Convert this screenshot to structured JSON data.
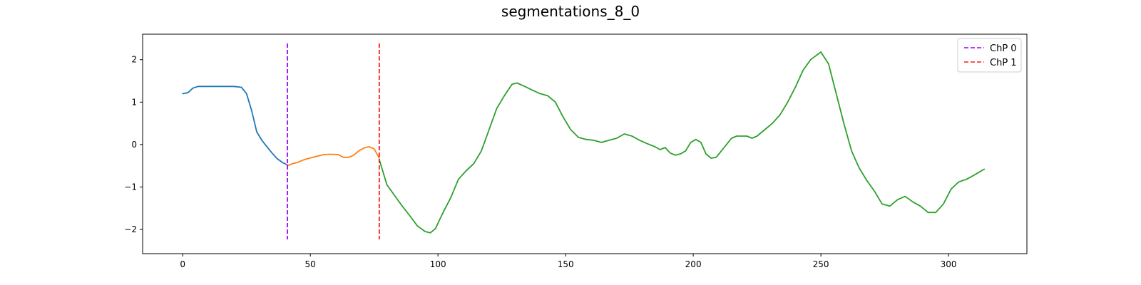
{
  "chart_data": {
    "type": "line",
    "title": "segmentations_8_0",
    "xlabel": "",
    "ylabel": "",
    "xlim": [
      -15.7,
      330.7
    ],
    "ylim": [
      -2.57,
      2.6
    ],
    "xticks": [
      0,
      50,
      100,
      150,
      200,
      250,
      300
    ],
    "yticks": [
      -2,
      -1,
      0,
      1,
      2
    ],
    "grid": false,
    "legend_position": "top-right",
    "series": [
      {
        "color": "#1f77b4",
        "x": [
          0,
          2,
          4,
          6,
          10,
          15,
          20,
          23,
          25,
          27,
          29,
          31,
          33,
          35,
          37,
          39,
          41
        ],
        "values": [
          1.2,
          1.22,
          1.33,
          1.37,
          1.37,
          1.37,
          1.37,
          1.35,
          1.2,
          0.8,
          0.3,
          0.1,
          -0.05,
          -0.2,
          -0.33,
          -0.42,
          -0.48
        ]
      },
      {
        "color": "#ff7f0e",
        "x": [
          41,
          43,
          45,
          47,
          49,
          51,
          53,
          55,
          57,
          59,
          61,
          63,
          65,
          67,
          69,
          71,
          73,
          75,
          77
        ],
        "values": [
          -0.5,
          -0.45,
          -0.42,
          -0.37,
          -0.33,
          -0.3,
          -0.27,
          -0.24,
          -0.23,
          -0.23,
          -0.24,
          -0.3,
          -0.3,
          -0.25,
          -0.15,
          -0.08,
          -0.05,
          -0.1,
          -0.32
        ]
      },
      {
        "color": "#2ca02c",
        "x": [
          77,
          80,
          83,
          86,
          89,
          92,
          95,
          97,
          99,
          102,
          105,
          108,
          111,
          114,
          117,
          120,
          123,
          126,
          129,
          131,
          134,
          137,
          140,
          143,
          146,
          149,
          152,
          155,
          158,
          161,
          164,
          167,
          170,
          173,
          176,
          179,
          182,
          185,
          187,
          189,
          191,
          193,
          195,
          197,
          199,
          201,
          203,
          205,
          207,
          209,
          211,
          213,
          215,
          217,
          219,
          221,
          223,
          225,
          228,
          231,
          234,
          237,
          240,
          243,
          246,
          250,
          253,
          256,
          259,
          262,
          265,
          268,
          271,
          274,
          277,
          280,
          283,
          286,
          289,
          292,
          295,
          298,
          301,
          304,
          307,
          310,
          314
        ],
        "values": [
          -0.35,
          -0.95,
          -1.2,
          -1.45,
          -1.68,
          -1.92,
          -2.05,
          -2.08,
          -1.98,
          -1.6,
          -1.25,
          -0.82,
          -0.62,
          -0.45,
          -0.15,
          0.35,
          0.85,
          1.15,
          1.42,
          1.45,
          1.37,
          1.28,
          1.2,
          1.15,
          1.0,
          0.65,
          0.35,
          0.17,
          0.12,
          0.1,
          0.05,
          0.1,
          0.15,
          0.25,
          0.2,
          0.1,
          0.02,
          -0.05,
          -0.12,
          -0.07,
          -0.2,
          -0.25,
          -0.22,
          -0.15,
          0.05,
          0.12,
          0.05,
          -0.22,
          -0.32,
          -0.3,
          -0.15,
          0.0,
          0.15,
          0.2,
          0.2,
          0.2,
          0.15,
          0.2,
          0.35,
          0.5,
          0.7,
          1.0,
          1.35,
          1.75,
          2.0,
          2.18,
          1.9,
          1.2,
          0.5,
          -0.15,
          -0.55,
          -0.85,
          -1.1,
          -1.4,
          -1.45,
          -1.3,
          -1.22,
          -1.35,
          -1.45,
          -1.6,
          -1.6,
          -1.4,
          -1.05,
          -0.88,
          -0.82,
          -0.72,
          -0.58
        ]
      }
    ],
    "vlines": [
      {
        "name": "ChP 0",
        "x": 41,
        "color": "#9900ff"
      },
      {
        "name": "ChP 1",
        "x": 77,
        "color": "#ff1a1a"
      }
    ]
  }
}
